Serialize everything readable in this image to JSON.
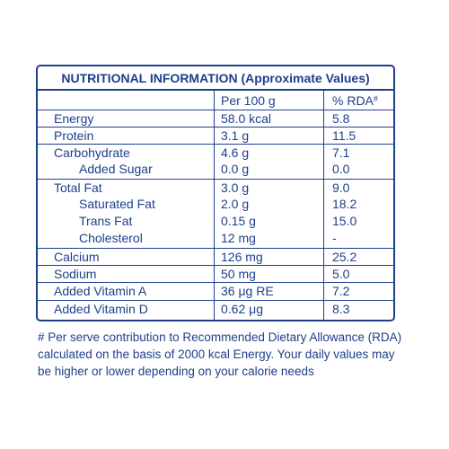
{
  "panel": {
    "title": "NUTRITIONAL INFORMATION (Approximate Values)",
    "header": {
      "per_100g": "Per 100 g",
      "rda": "% RDA",
      "rda_mark": "#"
    },
    "rows": [
      {
        "name": "Energy",
        "per": "58.0 kcal",
        "rda": "5.8"
      },
      {
        "name": "Protein",
        "per": "3.1 g",
        "rda": "11.5"
      },
      {
        "name": "Carbohydrate",
        "per": "4.6 g",
        "rda": "7.1"
      },
      {
        "name": "Added Sugar",
        "per": "0.0 g",
        "rda": "0.0"
      },
      {
        "name": "Total Fat",
        "per": "3.0 g",
        "rda": "9.0"
      },
      {
        "name": "Saturated Fat",
        "per": "2.0 g",
        "rda": "18.2"
      },
      {
        "name": "Trans Fat",
        "per": "0.15 g",
        "rda": "15.0"
      },
      {
        "name": "Cholesterol",
        "per": "12 mg",
        "rda": "-"
      },
      {
        "name": "Calcium",
        "per": "126 mg",
        "rda": "25.2"
      },
      {
        "name": "Sodium",
        "per": "50 mg",
        "rda": "5.0"
      },
      {
        "name": "Added Vitamin A",
        "per": "36 μg RE",
        "rda": "7.2"
      },
      {
        "name": "Added Vitamin D",
        "per": "0.62 μg",
        "rda": "8.3"
      }
    ]
  },
  "footnote": {
    "lines": [
      "# Per serve contribution to Recommended Dietary Allowance (RDA)",
      "calculated on the basis of 2000 kcal Energy. Your daily values may",
      "be higher or lower depending on your calorie needs"
    ]
  }
}
